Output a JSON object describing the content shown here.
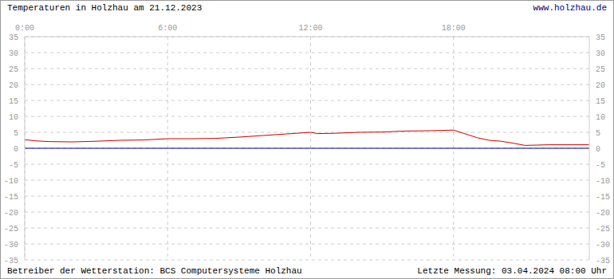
{
  "chart_data": {
    "type": "line",
    "title": "Temperaturen in Holzhau am 21.12.2023",
    "subtitle": "www.holzhau.de",
    "annotations": [
      "Betreiber der Wetterstation: BCS Computersysteme Holzhau",
      "Letzte Messung: 03.04.2024 08:00 Uhr"
    ],
    "x": [
      0,
      0.5,
      1,
      2,
      3,
      4,
      5,
      6,
      7,
      8,
      9,
      10,
      11,
      12,
      12.3,
      13,
      14,
      15,
      16,
      17,
      18,
      18.5,
      19,
      19.5,
      20,
      20.5,
      21,
      21.5,
      22,
      23,
      23.7
    ],
    "series": [
      {
        "color": "#cc0000",
        "values": [
          2.7,
          2.3,
          2.1,
          2.0,
          2.2,
          2.5,
          2.6,
          3.0,
          3.0,
          3.1,
          3.5,
          4.0,
          4.5,
          5.0,
          4.6,
          4.7,
          5.0,
          5.1,
          5.4,
          5.5,
          5.7,
          4.5,
          3.3,
          2.5,
          2.2,
          1.6,
          0.9,
          1.0,
          1.1,
          1.1,
          1.1
        ]
      },
      {
        "color": "#000080",
        "values": [
          0,
          0,
          0,
          0,
          0,
          0,
          0,
          0,
          0,
          0,
          0,
          0,
          0,
          0,
          0,
          0,
          0,
          0,
          0,
          0,
          0,
          0,
          0,
          0,
          0,
          0,
          0,
          0,
          0,
          0,
          0
        ]
      }
    ],
    "xlim": [
      0,
      23.7
    ],
    "xticks": [
      {
        "value": 0,
        "label": "0:00"
      },
      {
        "value": 6,
        "label": "6:00"
      },
      {
        "value": 12,
        "label": "12:00"
      },
      {
        "value": 18,
        "label": "18:00"
      }
    ],
    "ylim": [
      -35,
      35
    ],
    "yticks": [
      -35,
      -30,
      -25,
      -20,
      -15,
      -10,
      -5,
      0,
      5,
      10,
      15,
      20,
      25,
      30,
      35
    ],
    "grid": true
  }
}
